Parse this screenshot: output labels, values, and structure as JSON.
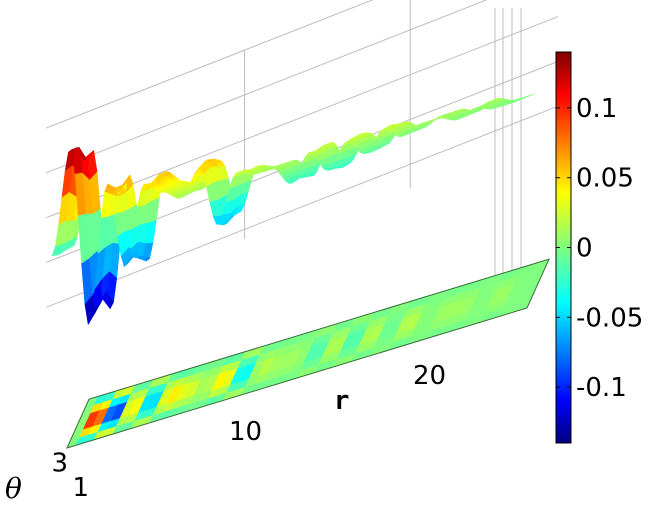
{
  "chart_data": {
    "type": "surface3d",
    "title": "",
    "xlabel": "r",
    "ylabel": "θ",
    "zlabel": "",
    "x_ticks": [
      "10",
      "20"
    ],
    "y_ticks": [
      "1",
      "3"
    ],
    "x_range": [
      0,
      25
    ],
    "y_range": [
      0,
      4
    ],
    "z_range": [
      -0.14,
      0.14
    ],
    "colormap": "jet",
    "colorbar": {
      "range": [
        -0.14,
        0.14
      ],
      "ticks": [
        {
          "value": 0.1,
          "label": "0.1"
        },
        {
          "value": 0.05,
          "label": "0.05"
        },
        {
          "value": 0,
          "label": "0"
        },
        {
          "value": -0.05,
          "label": "-0.05"
        },
        {
          "value": -0.1,
          "label": "-0.1"
        }
      ]
    },
    "series": [
      {
        "x": [
          0,
          1,
          2,
          3,
          4,
          5,
          6,
          7,
          8,
          9,
          10,
          11,
          12,
          13,
          14,
          15,
          16,
          17,
          18,
          19,
          20,
          21,
          22,
          23,
          24,
          25
        ],
        "values": [
          -0.02,
          0.13,
          -0.13,
          0.06,
          -0.07,
          0.05,
          0.03,
          0.01,
          0.05,
          -0.05,
          0.02,
          0.01,
          0.01,
          -0.02,
          0.02,
          -0.02,
          0.02,
          -0.01,
          0.02,
          0.0,
          0.01,
          0.01,
          0.0,
          0.01,
          0.0,
          0.0
        ]
      }
    ],
    "grid": true
  }
}
